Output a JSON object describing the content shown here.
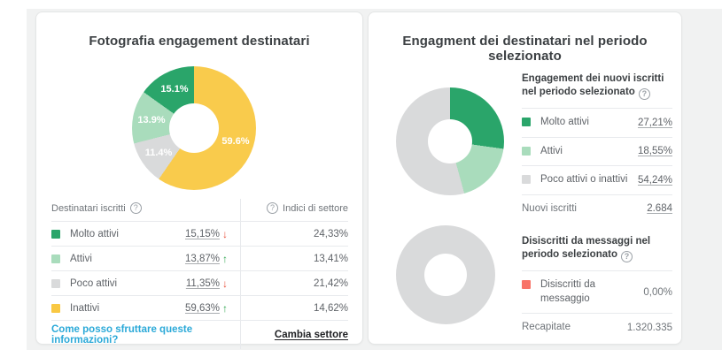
{
  "icons": {
    "help": "?",
    "trend_up": "↑",
    "trend_down": "↓"
  },
  "colors": {
    "accent_green": "#2aa56a",
    "light_green": "#a9dcbc",
    "neutral_gray": "#d9dadb",
    "yellow": "#f9c843",
    "red": "#f87368",
    "link_blue": "#2ba9d8",
    "trend_down_red": "#e8503a",
    "trend_up_green": "#34a853",
    "panel_bg": "#f1f2f2"
  },
  "left_card": {
    "title": "Fotografia engagement destinatari",
    "table": {
      "header_left": "Destinatari iscritti",
      "header_right": "Indici di settore",
      "rows": [
        {
          "label": "Molto attivi",
          "value": "15,15%",
          "trend": "down",
          "trend_icon": "↓",
          "industry": "24,33%"
        },
        {
          "label": "Attivi",
          "value": "13,87%",
          "trend": "up",
          "trend_icon": "↑",
          "industry": "13,41%"
        },
        {
          "label": "Poco attivi",
          "value": "11,35%",
          "trend": "down",
          "trend_icon": "↓",
          "industry": "21,42%"
        },
        {
          "label": "Inattivi",
          "value": "59,63%",
          "trend": "up",
          "trend_icon": "↑",
          "industry": "14,62%"
        }
      ],
      "footer_link": "Come posso sfruttare queste informazioni?",
      "change_link": "Cambia settore"
    }
  },
  "right_card": {
    "title": "Engagment dei destinatari nel periodo selezionato",
    "new_subscribers": {
      "title": "Engagement dei nuovi iscritti nel periodo selezionato",
      "rows": [
        {
          "label": "Molto attivi",
          "value": "27,21%"
        },
        {
          "label": "Attivi",
          "value": "18,55%"
        },
        {
          "label": "Poco attivi o inattivi",
          "value": "54,24%"
        }
      ],
      "total_label": "Nuovi iscritti",
      "total_value": "2.684"
    },
    "unsubscribed": {
      "title": "Disiscritti da messaggi nel periodo selezionato",
      "rows": [
        {
          "label": "Disiscritti da messaggio",
          "value": "0,00%"
        }
      ],
      "total_label": "Recapitate",
      "total_value": "1.320.335"
    }
  },
  "chart_data": [
    {
      "type": "pie",
      "variant": "donut",
      "title": "Fotografia engagement destinatari",
      "legend_position": "table-below",
      "segments": [
        {
          "label": "Inattivi",
          "value": 59.6,
          "color": "#f9cb4c",
          "data_label": "59.6%"
        },
        {
          "label": "Poco attivi",
          "value": 11.4,
          "color": "#d9dadb",
          "data_label": "11.4%"
        },
        {
          "label": "Attivi",
          "value": 13.9,
          "color": "#a9dcbc",
          "data_label": "13.9%"
        },
        {
          "label": "Molto attivi",
          "value": 15.1,
          "color": "#2aa56a",
          "data_label": "15.1%"
        }
      ]
    },
    {
      "type": "pie",
      "variant": "donut",
      "title": "Engagement dei nuovi iscritti nel periodo selezionato",
      "legend_position": "right",
      "segments": [
        {
          "label": "Molto attivi",
          "value": 27.21,
          "color": "#2aa56a"
        },
        {
          "label": "Attivi",
          "value": 18.55,
          "color": "#a9dcbc"
        },
        {
          "label": "Poco attivi o inattivi",
          "value": 54.24,
          "color": "#d9dadb"
        }
      ]
    },
    {
      "type": "pie",
      "variant": "donut",
      "title": "Disiscritti da messaggi nel periodo selezionato",
      "legend_position": "right",
      "segments": [
        {
          "label": "Recapitate",
          "value": 100,
          "color": "#d9dadb"
        }
      ]
    }
  ]
}
